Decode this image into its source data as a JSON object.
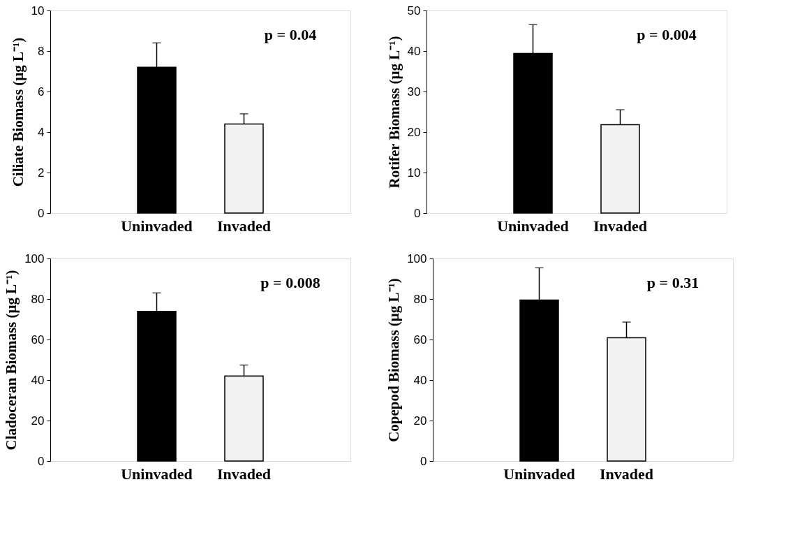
{
  "chart_data": [
    {
      "type": "bar",
      "categories": [
        "Uninvaded",
        "Invaded"
      ],
      "values": [
        7.2,
        4.4
      ],
      "errors": [
        1.2,
        0.5
      ],
      "colors": [
        "#000000",
        "#f2f2f2"
      ],
      "ylabel": "Ciliate Biomass (μg L⁻¹)",
      "ylim": [
        0,
        10
      ],
      "yticks": [
        0,
        2,
        4,
        6,
        8,
        10
      ],
      "annotations": [
        "p = 0.04"
      ]
    },
    {
      "type": "bar",
      "categories": [
        "Uninvaded",
        "Invaded"
      ],
      "values": [
        39.4,
        21.8
      ],
      "errors": [
        7.1,
        3.7
      ],
      "colors": [
        "#000000",
        "#f2f2f2"
      ],
      "ylabel": "Rotifer Biomass (μg L⁻¹)",
      "ylim": [
        0,
        50
      ],
      "yticks": [
        0,
        10,
        20,
        30,
        40,
        50
      ],
      "annotations": [
        "p = 0.004"
      ]
    },
    {
      "type": "bar",
      "categories": [
        "Uninvaded",
        "Invaded"
      ],
      "values": [
        73.9,
        42.0
      ],
      "errors": [
        9.1,
        5.4
      ],
      "colors": [
        "#000000",
        "#f2f2f2"
      ],
      "ylabel": "Cladoceran  Biomass (μg L⁻¹)",
      "ylim": [
        0,
        100
      ],
      "yticks": [
        0,
        20,
        40,
        60,
        80,
        100
      ],
      "annotations": [
        "p = 0.008"
      ]
    },
    {
      "type": "bar",
      "categories": [
        "Uninvaded",
        "Invaded"
      ],
      "values": [
        79.5,
        60.9
      ],
      "errors": [
        15.9,
        7.7
      ],
      "colors": [
        "#000000",
        "#f2f2f2"
      ],
      "ylabel": "Copepod Biomass (μg L⁻¹)",
      "ylim": [
        0,
        100
      ],
      "yticks": [
        0,
        20,
        40,
        60,
        80,
        100
      ],
      "annotations": [
        "p = 0.31"
      ]
    }
  ]
}
